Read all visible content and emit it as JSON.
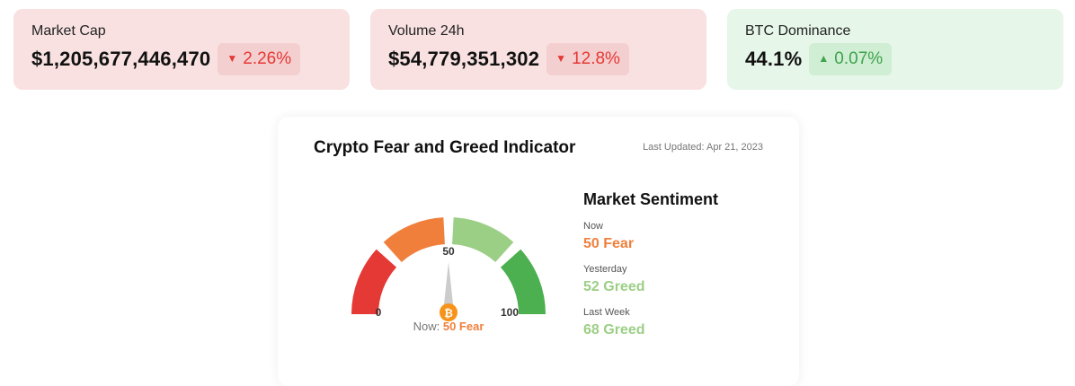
{
  "stats": [
    {
      "label": "Market Cap",
      "value": "$1,205,677,446,470",
      "change": "2.26%",
      "direction": "down"
    },
    {
      "label": "Volume 24h",
      "value": "$54,779,351,302",
      "change": "12.8%",
      "direction": "down"
    },
    {
      "label": "BTC Dominance",
      "value": "44.1%",
      "change": "0.07%",
      "direction": "up"
    }
  ],
  "fear_greed": {
    "title": "Crypto Fear and Greed Indicator",
    "last_updated": "Last Updated: Apr 21, 2023",
    "gauge": {
      "min_label": "0",
      "mid_label": "50",
      "max_label": "100",
      "current_value": 50,
      "needle_icon": "bitcoin-icon",
      "segment_colors": [
        "#e53935",
        "#f07f3c",
        "#9ccf86",
        "#4caf50"
      ]
    },
    "caption_prefix": "Now:",
    "caption_value": "50 Fear",
    "sentiment": {
      "heading": "Market Sentiment",
      "items": [
        {
          "label": "Now",
          "value": "50 Fear",
          "color": "#f07f3c"
        },
        {
          "label": "Yesterday",
          "value": "52 Greed",
          "color": "#9ccf86"
        },
        {
          "label": "Last Week",
          "value": "68 Greed",
          "color": "#9ccf86"
        }
      ]
    }
  },
  "colors": {
    "down_text": "#e53935",
    "up_text": "#3fa34d"
  }
}
